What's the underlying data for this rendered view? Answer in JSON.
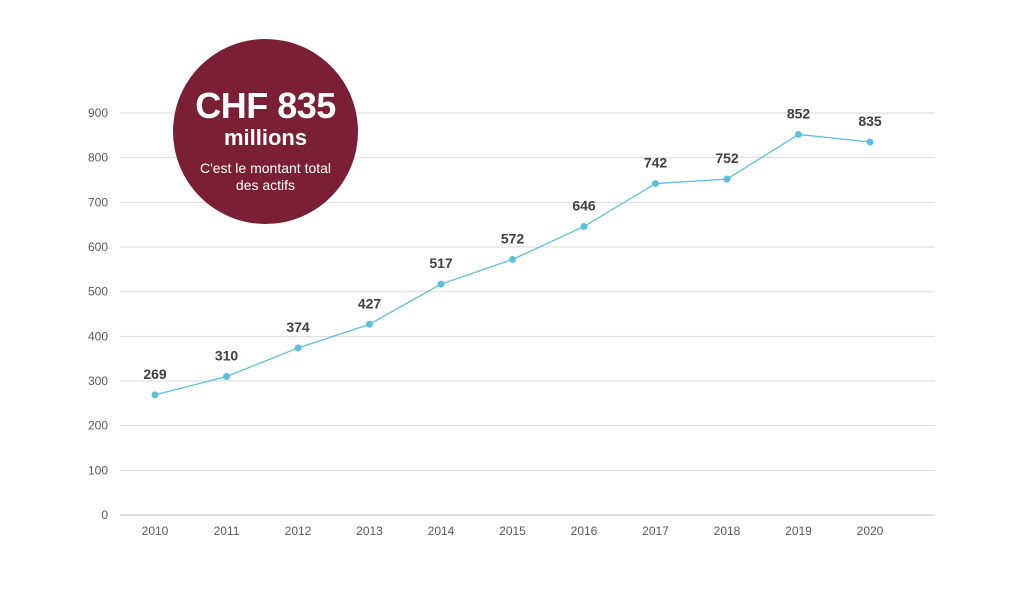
{
  "badge": {
    "amount": "CHF 835",
    "unit": "millions",
    "caption": "C'est le montant total des actifs",
    "color": "#7a1f35"
  },
  "chart_data": {
    "type": "line",
    "x": [
      "2010",
      "2011",
      "2012",
      "2013",
      "2014",
      "2015",
      "2016",
      "2017",
      "2018",
      "2019",
      "2020"
    ],
    "series": [
      {
        "values": [
          269,
          310,
          374,
          427,
          517,
          572,
          646,
          742,
          752,
          852,
          835
        ],
        "color": "#5bc0de"
      }
    ],
    "data_labels": [
      "269",
      "310",
      "374",
      "427",
      "517",
      "572",
      "646",
      "742",
      "752",
      "852",
      "835"
    ],
    "y_ticks": [
      0,
      100,
      200,
      300,
      400,
      500,
      600,
      700,
      800,
      900
    ],
    "ylim": [
      0,
      900
    ],
    "grid": true,
    "title": "",
    "xlabel": "",
    "ylabel": ""
  }
}
